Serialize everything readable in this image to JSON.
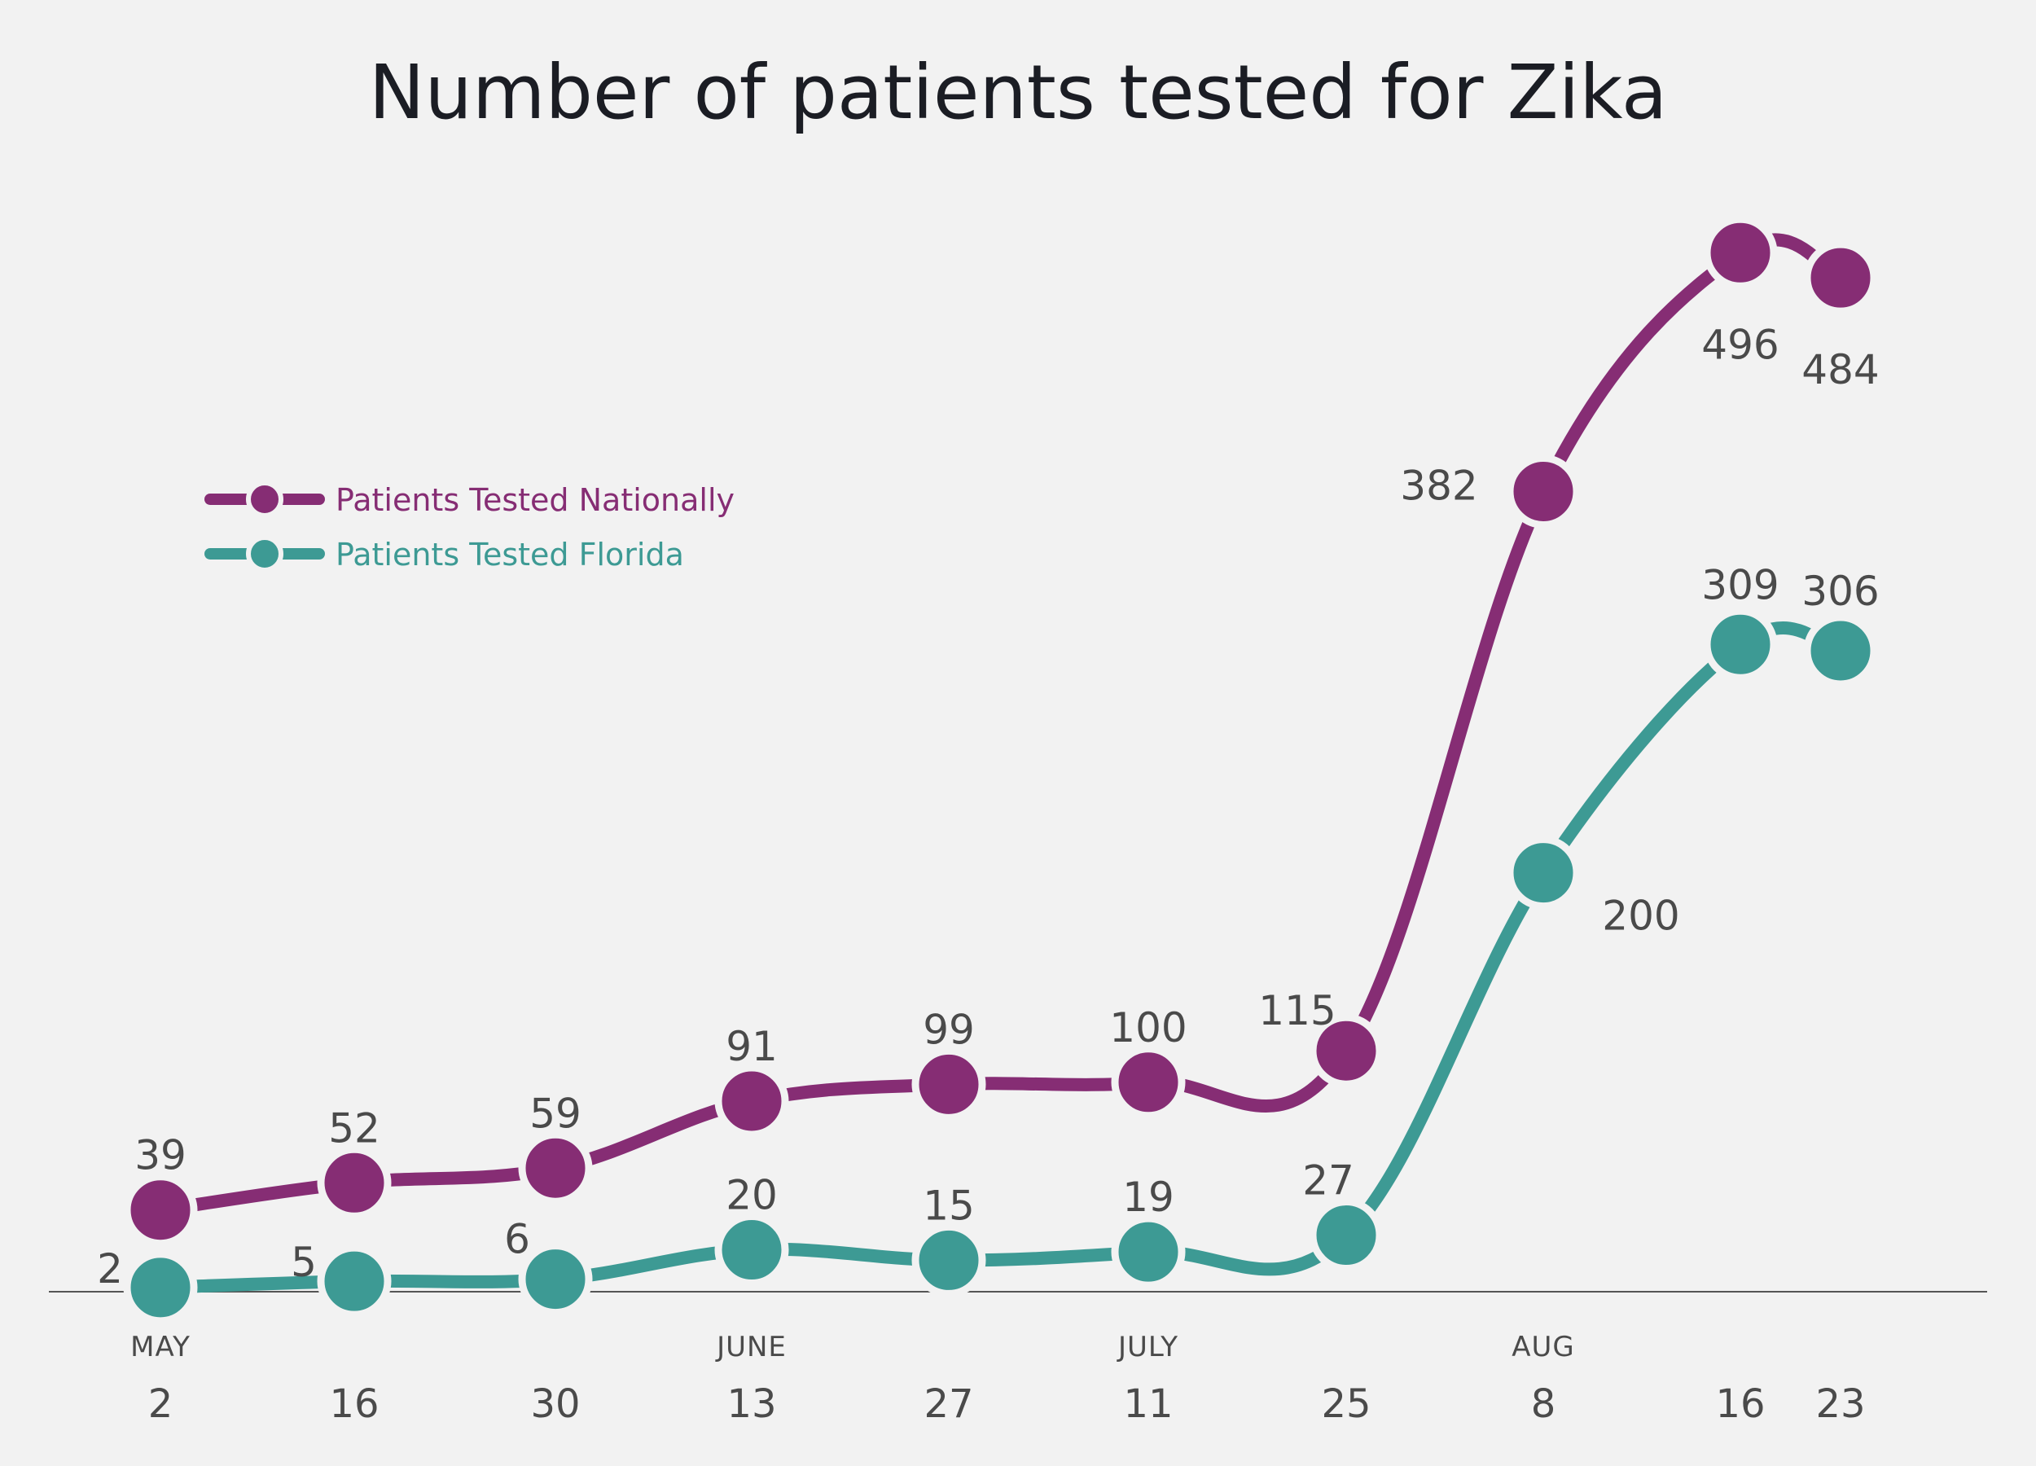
{
  "chart_data": {
    "type": "line",
    "title": "Number of patients tested for Zika",
    "x_months": [
      "MAY",
      "",
      "",
      "JUNE",
      "",
      "JULY",
      "",
      "AUG",
      "",
      ""
    ],
    "x_days": [
      "2",
      "16",
      "30",
      "13",
      "27",
      "11",
      "25",
      "8",
      "16",
      "23"
    ],
    "ylim": [
      0,
      500
    ],
    "series": [
      {
        "name": "Patients Tested Nationally",
        "color": "#862d74",
        "values": [
          39,
          52,
          59,
          91,
          99,
          100,
          115,
          382,
          496,
          484
        ]
      },
      {
        "name": "Patients Tested Florida",
        "color": "#3d9a94",
        "values": [
          2,
          5,
          6,
          20,
          15,
          19,
          27,
          200,
          309,
          306
        ]
      }
    ],
    "legend_position": "top-left",
    "grid": false
  }
}
